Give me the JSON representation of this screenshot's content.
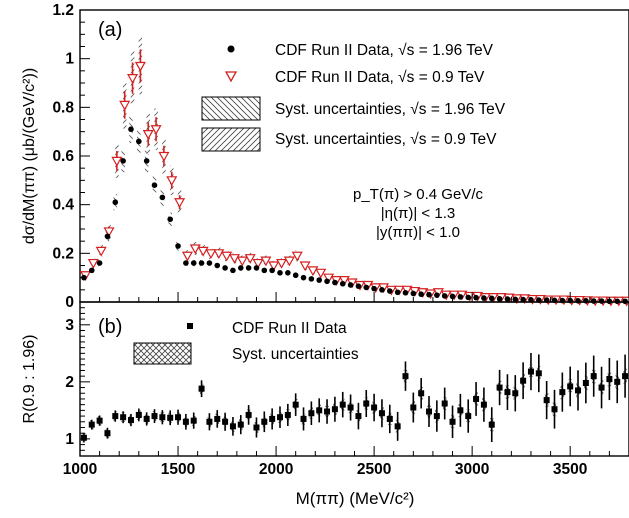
{
  "chart_data": [
    {
      "panel": "(a)",
      "type": "scatter",
      "xlabel": "M(ππ)  (MeV/c²)",
      "ylabel": "dσ/dM(ππ) (μb/(GeV/c²))",
      "xlim": [
        1000,
        3800
      ],
      "ylim": [
        0,
        1.2
      ],
      "x_ticks": [
        "1000",
        "1500",
        "2000",
        "2500",
        "3000",
        "3500"
      ],
      "y_ticks": [
        "0",
        "0.2",
        "0.4",
        "0.6",
        "0.8",
        "1",
        "1.2"
      ],
      "legend_position": "top-right",
      "legend": [
        {
          "label": "CDF Run II Data, √s = 1.96 TeV",
          "marker": "filled-circle"
        },
        {
          "label": "CDF Run II Data, √s = 0.9 TeV",
          "marker": "open-triangle-down"
        },
        {
          "label": "Syst. uncertainties, √s = 1.96 TeV",
          "marker": "hatch-back"
        },
        {
          "label": "Syst. uncertainties, √s = 0.9 TeV",
          "marker": "hatch-fwd"
        }
      ],
      "annotations": [
        "p_T(π) > 0.4 GeV/c",
        "|η(π)| < 1.3",
        "|y(ππ)| < 1.0"
      ],
      "series": [
        {
          "name": "CDF Run II Data, √s = 1.96 TeV",
          "color": "#000000",
          "x": [
            1020,
            1060,
            1100,
            1140,
            1180,
            1220,
            1260,
            1300,
            1340,
            1380,
            1420,
            1460,
            1500,
            1540,
            1580,
            1620,
            1660,
            1700,
            1740,
            1780,
            1820,
            1860,
            1900,
            1940,
            1980,
            2020,
            2060,
            2100,
            2140,
            2180,
            2220,
            2260,
            2300,
            2340,
            2380,
            2420,
            2460,
            2500,
            2540,
            2580,
            2620,
            2660,
            2700,
            2740,
            2780,
            2820,
            2860,
            2900,
            2940,
            2980,
            3020,
            3060,
            3100,
            3140,
            3180,
            3220,
            3260,
            3300,
            3340,
            3380,
            3420,
            3460,
            3500,
            3540,
            3580,
            3620,
            3660,
            3700,
            3740,
            3780
          ],
          "y": [
            0.1,
            0.13,
            0.16,
            0.27,
            0.41,
            0.58,
            0.71,
            0.66,
            0.58,
            0.48,
            0.43,
            0.34,
            0.23,
            0.16,
            0.16,
            0.16,
            0.16,
            0.15,
            0.14,
            0.13,
            0.14,
            0.14,
            0.14,
            0.13,
            0.13,
            0.12,
            0.12,
            0.11,
            0.1,
            0.095,
            0.09,
            0.085,
            0.08,
            0.075,
            0.07,
            0.065,
            0.06,
            0.055,
            0.05,
            0.045,
            0.04,
            0.038,
            0.035,
            0.032,
            0.03,
            0.028,
            0.025,
            0.023,
            0.021,
            0.019,
            0.018,
            0.016,
            0.015,
            0.013,
            0.012,
            0.011,
            0.01,
            0.009,
            0.008,
            0.008,
            0.007,
            0.006,
            0.006,
            0.005,
            0.005,
            0.004,
            0.004,
            0.003,
            0.003,
            0.003
          ]
        },
        {
          "name": "CDF Run II Data, √s = 0.9 TeV",
          "color": "#d42020",
          "x": [
            1020,
            1060,
            1100,
            1140,
            1180,
            1220,
            1260,
            1300,
            1340,
            1380,
            1420,
            1460,
            1500,
            1540,
            1580,
            1620,
            1660,
            1700,
            1740,
            1780,
            1820,
            1860,
            1900,
            1940,
            1980,
            2020,
            2060,
            2100,
            2140,
            2180,
            2220,
            2260,
            2300,
            2340,
            2380,
            2420,
            2460,
            2500,
            2540,
            2580,
            2620,
            2660,
            2700,
            2740,
            2780,
            2820,
            2860,
            2900,
            2940,
            2980,
            3020,
            3060,
            3100,
            3140,
            3180,
            3220,
            3260,
            3300,
            3340,
            3380,
            3420,
            3460,
            3500,
            3540,
            3580,
            3620,
            3660,
            3700,
            3740,
            3780
          ],
          "y": [
            0.11,
            0.16,
            0.21,
            0.29,
            0.58,
            0.81,
            0.92,
            0.97,
            0.69,
            0.71,
            0.6,
            0.5,
            0.41,
            0.19,
            0.22,
            0.21,
            0.2,
            0.2,
            0.19,
            0.18,
            0.17,
            0.18,
            0.16,
            0.17,
            0.15,
            0.16,
            0.17,
            0.19,
            0.15,
            0.13,
            0.12,
            0.1,
            0.09,
            0.09,
            0.08,
            0.07,
            0.07,
            0.06,
            0.06,
            0.05,
            0.05,
            0.05,
            0.045,
            0.04,
            0.035,
            0.04,
            0.03,
            0.03,
            0.03,
            0.025,
            0.025,
            0.02,
            0.02,
            0.02,
            0.018,
            0.015,
            0.015,
            0.012,
            0.012,
            0.01,
            0.01,
            0.01,
            0.008,
            0.008,
            0.007,
            0.006,
            0.006,
            0.005,
            0.005,
            0.005
          ]
        }
      ]
    },
    {
      "panel": "(b)",
      "type": "scatter",
      "xlabel": "M(ππ)  (MeV/c²)",
      "ylabel": "R(0.9 : 1.96)",
      "xlim": [
        1000,
        3800
      ],
      "ylim": [
        0.7,
        3.4
      ],
      "y_ticks": [
        "1",
        "2",
        "3"
      ],
      "legend_position": "top-left",
      "legend": [
        {
          "label": "CDF Run II Data",
          "marker": "filled-square"
        },
        {
          "label": "Syst. uncertainties",
          "marker": "crosshatch"
        }
      ],
      "series": [
        {
          "name": "CDF Run II Data",
          "color": "#000000",
          "x": [
            1020,
            1060,
            1100,
            1140,
            1180,
            1220,
            1260,
            1300,
            1340,
            1380,
            1420,
            1460,
            1500,
            1540,
            1580,
            1620,
            1660,
            1700,
            1740,
            1780,
            1820,
            1860,
            1900,
            1940,
            1980,
            2020,
            2060,
            2100,
            2140,
            2180,
            2220,
            2260,
            2300,
            2340,
            2380,
            2420,
            2460,
            2500,
            2540,
            2580,
            2620,
            2660,
            2700,
            2740,
            2780,
            2820,
            2860,
            2900,
            2940,
            2980,
            3020,
            3060,
            3100,
            3140,
            3180,
            3220,
            3260,
            3300,
            3340,
            3380,
            3420,
            3460,
            3500,
            3540,
            3580,
            3620,
            3660,
            3700,
            3740,
            3780
          ],
          "y": [
            1.02,
            1.25,
            1.32,
            1.1,
            1.4,
            1.38,
            1.33,
            1.42,
            1.35,
            1.4,
            1.38,
            1.37,
            1.38,
            1.3,
            1.32,
            1.88,
            1.3,
            1.35,
            1.3,
            1.22,
            1.25,
            1.42,
            1.2,
            1.3,
            1.35,
            1.38,
            1.42,
            1.6,
            1.35,
            1.45,
            1.5,
            1.48,
            1.52,
            1.6,
            1.55,
            1.4,
            1.62,
            1.55,
            1.45,
            1.35,
            1.22,
            2.1,
            1.55,
            1.8,
            1.48,
            1.4,
            1.62,
            1.3,
            1.5,
            1.4,
            1.7,
            1.6,
            1.25,
            1.9,
            1.82,
            1.8,
            2.02,
            2.18,
            2.15,
            1.68,
            1.52,
            1.82,
            1.92,
            1.85,
            1.98,
            2.1,
            1.9,
            2.05,
            2.0,
            2.1
          ]
        }
      ]
    }
  ]
}
